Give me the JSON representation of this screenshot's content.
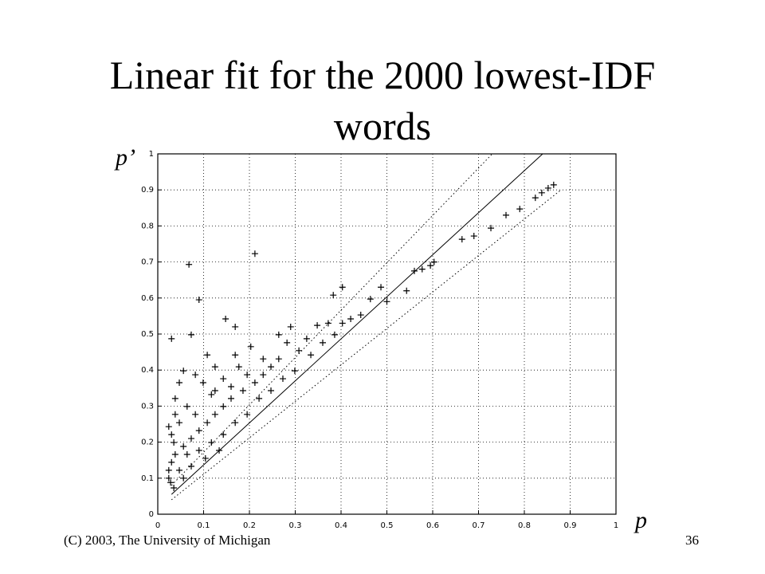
{
  "chart_data": {
    "type": "scatter",
    "title": "Linear fit for the 2000 lowest-IDF words",
    "x_label": "p",
    "y_label": "p’",
    "marker": "+",
    "color": "#000000",
    "x": [
      0.068,
      0.09,
      0.212,
      0.148,
      0.169,
      0.03,
      0.073,
      0.403,
      0.383,
      0.487,
      0.464,
      0.5,
      0.543,
      0.443,
      0.403,
      0.348,
      0.372,
      0.56,
      0.577,
      0.595,
      0.603,
      0.664,
      0.69,
      0.727,
      0.76,
      0.79,
      0.824,
      0.838,
      0.852,
      0.864,
      0.282,
      0.308,
      0.325,
      0.264,
      0.247,
      0.23,
      0.212,
      0.195,
      0.177,
      0.186,
      0.16,
      0.143,
      0.125,
      0.108,
      0.09,
      0.073,
      0.056,
      0.038,
      0.024,
      0.028,
      0.035,
      0.038,
      0.047,
      0.056,
      0.082,
      0.108,
      0.125,
      0.099,
      0.117,
      0.143,
      0.169,
      0.203,
      0.064,
      0.082,
      0.047,
      0.03,
      0.035,
      0.064,
      0.09,
      0.117,
      0.143,
      0.169,
      0.195,
      0.221,
      0.247,
      0.273,
      0.299,
      0.334,
      0.36,
      0.386,
      0.421,
      0.03,
      0.047,
      0.073,
      0.104,
      0.134,
      0.056,
      0.024,
      0.038,
      0.024,
      0.125,
      0.16,
      0.23,
      0.264,
      0.29
    ],
    "values": [
      0.693,
      0.595,
      0.723,
      0.542,
      0.52,
      0.487,
      0.498,
      0.63,
      0.608,
      0.63,
      0.597,
      0.59,
      0.62,
      0.553,
      0.53,
      0.524,
      0.53,
      0.675,
      0.68,
      0.69,
      0.7,
      0.763,
      0.772,
      0.794,
      0.83,
      0.847,
      0.878,
      0.892,
      0.905,
      0.914,
      0.476,
      0.454,
      0.487,
      0.431,
      0.409,
      0.387,
      0.365,
      0.387,
      0.409,
      0.343,
      0.321,
      0.299,
      0.277,
      0.254,
      0.232,
      0.21,
      0.188,
      0.166,
      0.122,
      0.088,
      0.073,
      0.321,
      0.365,
      0.398,
      0.387,
      0.442,
      0.409,
      0.365,
      0.332,
      0.376,
      0.442,
      0.465,
      0.299,
      0.277,
      0.254,
      0.221,
      0.199,
      0.166,
      0.177,
      0.199,
      0.221,
      0.254,
      0.277,
      0.321,
      0.343,
      0.376,
      0.398,
      0.442,
      0.476,
      0.498,
      0.542,
      0.144,
      0.122,
      0.133,
      0.155,
      0.177,
      0.1,
      0.1,
      0.277,
      0.243,
      0.343,
      0.354,
      0.431,
      0.498,
      0.52
    ],
    "lines": [
      {
        "style": "solid",
        "x": [
          0.03,
          0.84
        ],
        "values": [
          0.055,
          1
        ]
      },
      {
        "style": "dotted",
        "x": [
          0.03,
          0.73
        ],
        "values": [
          0.08,
          1
        ]
      },
      {
        "style": "dotted",
        "x": [
          0.03,
          0.88
        ],
        "values": [
          0.04,
          0.9
        ]
      }
    ],
    "xlim": [
      0,
      1
    ],
    "ylim": [
      0,
      1
    ],
    "xticks": [
      0,
      0.1,
      0.2,
      0.3,
      0.4,
      0.5,
      0.6,
      0.7,
      0.8,
      0.9,
      1
    ],
    "yticks": [
      0,
      0.1,
      0.2,
      0.3,
      0.4,
      0.5,
      0.6,
      0.7,
      0.8,
      0.9,
      1
    ],
    "grid": true
  },
  "footer": {
    "left": "(C) 2003, The University of Michigan",
    "page": "36"
  }
}
